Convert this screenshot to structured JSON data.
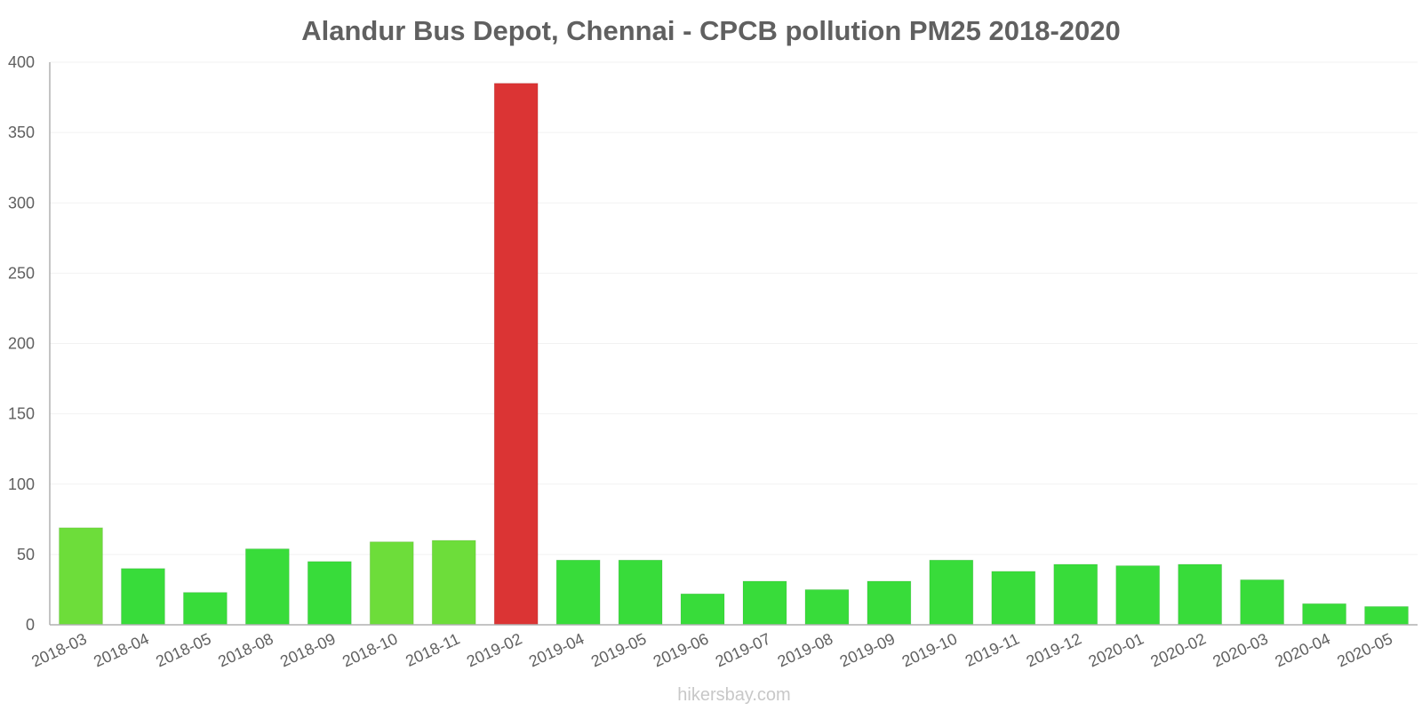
{
  "chart_data": {
    "type": "bar",
    "title": "Alandur Bus Depot, Chennai - CPCB pollution PM25 2018-2020",
    "xlabel": "",
    "ylabel": "",
    "ylim": [
      0,
      400
    ],
    "yticks": [
      "0",
      "50",
      "100",
      "150",
      "200",
      "250",
      "300",
      "350",
      "400"
    ],
    "grid": true,
    "categories": [
      "2018-03",
      "2018-04",
      "2018-05",
      "2018-08",
      "2018-09",
      "2018-10",
      "2018-11",
      "2019-02",
      "2019-04",
      "2019-05",
      "2019-06",
      "2019-07",
      "2019-08",
      "2019-09",
      "2019-10",
      "2019-11",
      "2019-12",
      "2020-01",
      "2020-02",
      "2020-03",
      "2020-04",
      "2020-05"
    ],
    "values": [
      69,
      40,
      23,
      54,
      45,
      59,
      60,
      385,
      46,
      46,
      22,
      31,
      25,
      31,
      46,
      38,
      43,
      42,
      43,
      32,
      15,
      13
    ],
    "bar_colors": [
      "#6ddd3a",
      "#38dc3a",
      "#38dc3a",
      "#38dc3a",
      "#38dc3a",
      "#6ddd3a",
      "#6ddd3a",
      "#db3434",
      "#38dc3a",
      "#38dc3a",
      "#38dc3a",
      "#38dc3a",
      "#38dc3a",
      "#38dc3a",
      "#38dc3a",
      "#38dc3a",
      "#38dc3a",
      "#38dc3a",
      "#38dc3a",
      "#38dc3a",
      "#38dc3a",
      "#38dc3a"
    ]
  },
  "watermark": "hikersbay.com"
}
